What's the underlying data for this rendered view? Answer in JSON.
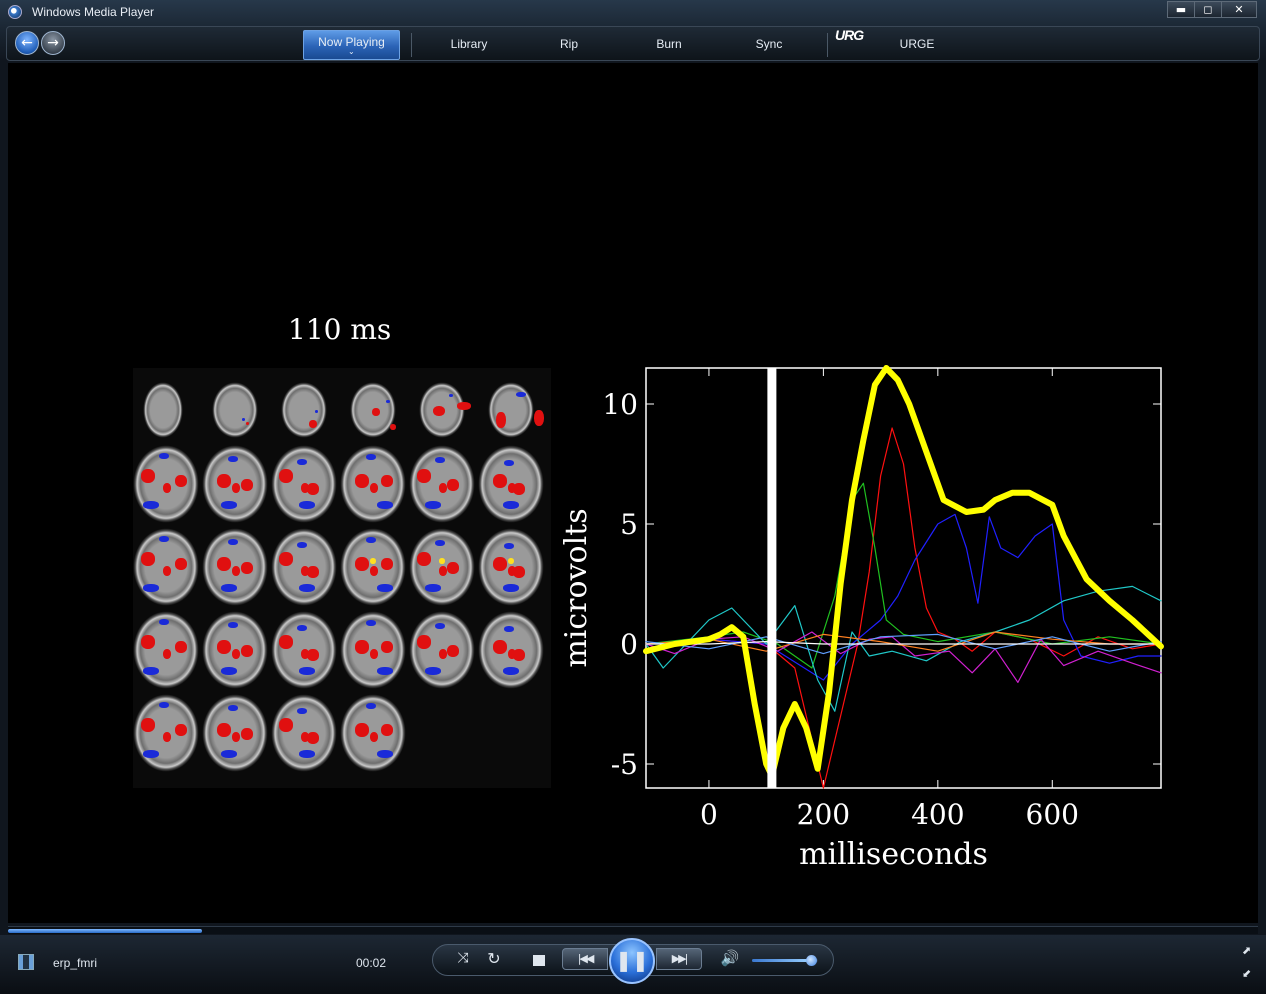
{
  "window": {
    "title": "Windows Media Player",
    "minimize_glyph": "▬",
    "maximize_glyph": "◻",
    "close_glyph": "✕"
  },
  "nav": {
    "back_glyph": "←",
    "forward_glyph": "→",
    "tabs": [
      "Now Playing",
      "Library",
      "Rip",
      "Burn",
      "Sync",
      "URGE"
    ],
    "now_playing_caret": "⌄",
    "urge_logo": "URG"
  },
  "video": {
    "time_label": "110 ms",
    "brain_slice_rows": [
      6,
      6,
      6,
      6,
      4
    ]
  },
  "chart_data": {
    "type": "line",
    "xlabel": "milliseconds",
    "ylabel": "microvolts",
    "xlim": [
      -110,
      790
    ],
    "ylim": [
      -6,
      11.5
    ],
    "xticks": [
      0,
      200,
      400,
      600
    ],
    "yticks": [
      -5,
      0,
      5,
      10
    ],
    "marker_x": 110,
    "series": [
      {
        "color": "#ffff00",
        "width": 6,
        "x": [
          -110,
          -60,
          0,
          20,
          40,
          60,
          80,
          100,
          110,
          130,
          150,
          170,
          190,
          210,
          230,
          250,
          270,
          290,
          310,
          330,
          350,
          380,
          410,
          450,
          480,
          500,
          530,
          560,
          600,
          620,
          660,
          700,
          740,
          790
        ],
        "y": [
          -0.3,
          0,
          0.2,
          0.4,
          0.7,
          0.3,
          -2.5,
          -5,
          -5.5,
          -3.5,
          -2.5,
          -3.5,
          -5.2,
          -2,
          2.5,
          6,
          8.5,
          10.8,
          11.5,
          11,
          10,
          8,
          6,
          5.5,
          5.6,
          6,
          6.3,
          6.3,
          5.8,
          4.5,
          2.7,
          1.8,
          1,
          -0.1
        ]
      },
      {
        "color": "#ff1010",
        "width": 1.2,
        "x": [
          -110,
          0,
          100,
          150,
          200,
          230,
          260,
          280,
          300,
          320,
          340,
          360,
          380,
          400,
          430,
          460,
          500,
          560,
          620,
          680,
          740,
          790
        ],
        "y": [
          0,
          0.2,
          0,
          -1,
          -6,
          -3,
          0,
          3,
          7,
          9,
          7.5,
          4,
          1.5,
          0.5,
          0.2,
          -0.3,
          0.5,
          0.2,
          -0.5,
          0.3,
          -0.2,
          0
        ]
      },
      {
        "color": "#2020ff",
        "width": 1.2,
        "x": [
          -110,
          0,
          100,
          200,
          250,
          300,
          330,
          360,
          400,
          430,
          450,
          470,
          490,
          510,
          540,
          570,
          600,
          620,
          650,
          700,
          750,
          790
        ],
        "y": [
          0,
          0.2,
          0,
          -1.5,
          0,
          1,
          2,
          3.5,
          5,
          5.4,
          4,
          1.7,
          5.3,
          4,
          3.6,
          4.5,
          5,
          1,
          -0.5,
          -0.8,
          -0.5,
          -0.5
        ]
      },
      {
        "color": "#20c020",
        "width": 1.2,
        "x": [
          -110,
          0,
          60,
          120,
          180,
          220,
          250,
          270,
          290,
          310,
          340,
          400,
          500,
          600,
          700,
          790
        ],
        "y": [
          0,
          0.3,
          0.5,
          0,
          -1,
          2,
          6,
          6.7,
          4,
          1,
          0.4,
          0.1,
          0.5,
          0,
          0.3,
          0
        ]
      },
      {
        "color": "#20c8c8",
        "width": 1.2,
        "x": [
          -110,
          -80,
          -40,
          0,
          40,
          100,
          150,
          190,
          220,
          250,
          280,
          320,
          380,
          440,
          500,
          560,
          620,
          680,
          740,
          790
        ],
        "y": [
          0,
          -1,
          0,
          1,
          1.5,
          0,
          1.6,
          -1.5,
          -2.8,
          0.5,
          -0.5,
          -0.3,
          -0.7,
          0.1,
          0.5,
          1,
          1.8,
          2.2,
          2.4,
          1.8
        ]
      },
      {
        "color": "#d020d0",
        "width": 1.2,
        "x": [
          -110,
          -60,
          0,
          60,
          120,
          180,
          230,
          280,
          320,
          360,
          420,
          460,
          500,
          540,
          580,
          620,
          680,
          740,
          790
        ],
        "y": [
          0,
          -0.4,
          0.2,
          0.3,
          -0.3,
          0.5,
          -0.4,
          0.2,
          0.3,
          -0.5,
          -0.3,
          -1.2,
          -0.2,
          -1.6,
          0.2,
          -0.9,
          -0.3,
          -0.8,
          -1.2
        ]
      },
      {
        "color": "#ff8020",
        "width": 1.2,
        "x": [
          -110,
          0,
          100,
          200,
          300,
          400,
          500,
          600,
          700,
          790
        ],
        "y": [
          0,
          0.2,
          -0.3,
          0.4,
          0.1,
          -0.3,
          0.5,
          0.2,
          0,
          0
        ]
      },
      {
        "color": "#60a0ff",
        "width": 1.2,
        "x": [
          -110,
          0,
          100,
          200,
          300,
          400,
          500,
          600,
          700,
          790
        ],
        "y": [
          0.1,
          -0.2,
          0.3,
          -0.4,
          0.3,
          0.4,
          -0.2,
          0.3,
          -0.3,
          0.1
        ]
      },
      {
        "color": "#ffffff",
        "width": 1.2,
        "x": [
          -110,
          0,
          100,
          200,
          300,
          400,
          500,
          600,
          700,
          790
        ],
        "y": [
          0,
          0,
          0.1,
          0,
          0,
          0,
          0,
          0,
          0,
          0
        ]
      }
    ]
  },
  "controls": {
    "media_title": "erp_fmri",
    "time_elapsed": "00:02",
    "seek_progress": 0.155,
    "volume_level": 0.9,
    "shuffle_glyph": "⤨",
    "repeat_glyph": "↻",
    "prev_glyph": "|◀◀",
    "play_pause_glyph": "❚❚",
    "next_glyph": "▶▶|",
    "mute_glyph": "🔊",
    "fullscreen_glyph": "⬈",
    "switch_mode_glyph": "⬋"
  }
}
